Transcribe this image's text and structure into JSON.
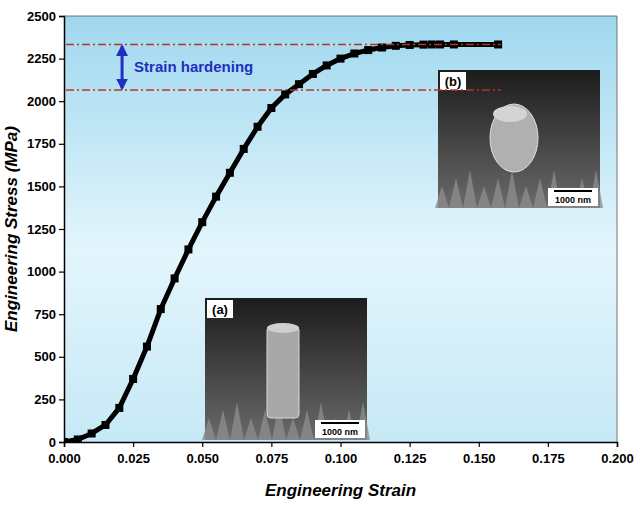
{
  "chart_data": {
    "type": "line",
    "x_label": "Engineering Strain",
    "y_label": "Engineering Stress (MPa)",
    "x": [
      0,
      0.005,
      0.01,
      0.015,
      0.02,
      0.025,
      0.03,
      0.035,
      0.04,
      0.045,
      0.05,
      0.055,
      0.06,
      0.065,
      0.07,
      0.075,
      0.08,
      0.085,
      0.09,
      0.095,
      0.1,
      0.105,
      0.11,
      0.115,
      0.12,
      0.125,
      0.13,
      0.133,
      0.136,
      0.141,
      0.157
    ],
    "values": [
      0,
      15,
      50,
      100,
      200,
      370,
      560,
      780,
      960,
      1130,
      1290,
      1440,
      1580,
      1720,
      1850,
      1960,
      2040,
      2100,
      2160,
      2210,
      2250,
      2280,
      2300,
      2315,
      2325,
      2330,
      2332,
      2333,
      2333,
      2333,
      2333
    ],
    "color": "#000000",
    "marker": "square",
    "xlim": [
      0,
      0.2
    ],
    "ylim": [
      0,
      2500
    ],
    "xticks": [
      {
        "value": 0,
        "label": "0.000"
      },
      {
        "value": 0.025,
        "label": "0.025"
      },
      {
        "value": 0.05,
        "label": "0.050"
      },
      {
        "value": 0.075,
        "label": "0.075"
      },
      {
        "value": 0.1,
        "label": "0.100"
      },
      {
        "value": 0.125,
        "label": "0.125"
      },
      {
        "value": 0.15,
        "label": "0.150"
      },
      {
        "value": 0.175,
        "label": "0.175"
      },
      {
        "value": 0.2,
        "label": "0.200"
      }
    ],
    "yticks": [
      0,
      250,
      500,
      750,
      1000,
      1250,
      1500,
      1750,
      2000,
      2250,
      2500
    ],
    "grid": false,
    "annotation": {
      "text": "Strain hardening",
      "lower": 2065,
      "upper": 2333
    },
    "insets": [
      {
        "label": "(a)",
        "scale_bar": "1000 nm"
      },
      {
        "label": "(b)",
        "scale_bar": "1000 nm"
      }
    ]
  }
}
